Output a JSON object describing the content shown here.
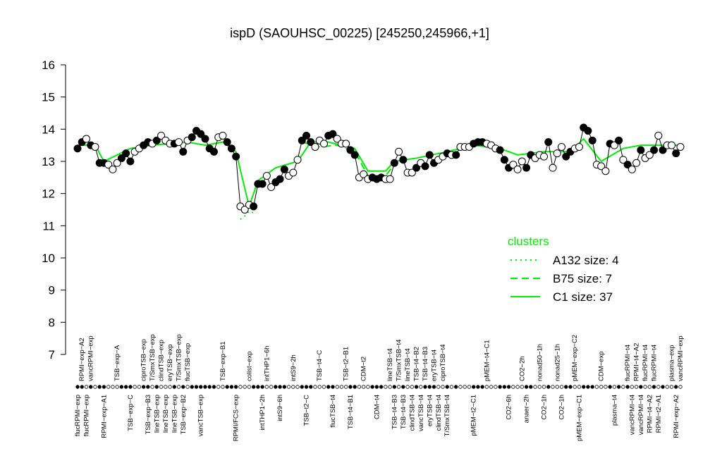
{
  "chart_data": {
    "type": "line",
    "title": "ispD (SAOUHSC_00225) [245250,245966,+1]",
    "ylim": [
      7,
      16
    ],
    "yticks": [
      7,
      8,
      9,
      10,
      11,
      12,
      13,
      14,
      15,
      16
    ],
    "color": "#000000",
    "categories": [
      "flucRPMI−exp",
      "RPMI−exp−A2",
      "flucRPMI−exp",
      "vancRPMI−exp",
      null,
      null,
      "RPMI−exp−A1",
      null,
      null,
      "TSB−exp−A",
      null,
      null,
      "TSB−exp−C",
      null,
      null,
      "ciproTSB−exp",
      "TSB−exp−B3",
      "T/SmxTSB−exp",
      "lineTSB−exp",
      "clindTSB−exp",
      "lineTSB−exp",
      "eryTSB−exp",
      "lineTSB−exp",
      "T/SmxTSB−exp",
      "TSB−exp−B2",
      "flucTSB−exp",
      null,
      null,
      "vancTSB−exp",
      null,
      null,
      null,
      null,
      "TSB−exp−B1",
      null,
      null,
      "RPMI/FCS−exp",
      null,
      null,
      "colist−exp",
      null,
      null,
      "intTHP1−2h",
      "intTHP1−6h",
      null,
      null,
      "intS9−6h",
      null,
      null,
      "intS9−2h",
      null,
      null,
      "TSB−t2−C",
      null,
      null,
      "TSB−t4−C",
      null,
      null,
      "flucTSB−t4",
      null,
      null,
      "TSB−t2−B1",
      "TSB−t4−B1",
      null,
      null,
      "CDM−t2",
      null,
      null,
      "CDM−t4",
      null,
      null,
      "lineTSB−t4",
      "TSB−t4−B3",
      "T/SmxTSB−t4",
      "TSB−t4−B3",
      "lineTSB−t4",
      "clindTSB−t4",
      "TSB−t4−B2",
      "vancTSB−t4",
      "TSB−t4−B3",
      "eryTSB−t4",
      "eryTSB−t4",
      "clindTSB−t4",
      "ciproTSB−t4",
      "T/SmxTSB−t4",
      null,
      null,
      null,
      null,
      null,
      "pMEM−t2−C1",
      null,
      null,
      "pMEM−t4−C1",
      null,
      null,
      null,
      null,
      "CO2−6h",
      null,
      null,
      "CO2−2h",
      "anaer−2h",
      null,
      null,
      "nonad50−1h",
      "CO2−1h",
      null,
      null,
      "nonad25−1h",
      "CO2−1h",
      null,
      null,
      "pMEM−exp−C2",
      "pMEM−exp−C1",
      null,
      null,
      null,
      null,
      "CDM−exp",
      null,
      null,
      "plasma−t4",
      null,
      null,
      "flucRPMI−t4",
      "vancRPMI−t4",
      "RPMI−t4−A2",
      "vancRPMI−t4",
      "flucRPMI−t4",
      "RPMI−t4−A2",
      "flucRPMI−t4",
      "RPMI−t2−A1",
      null,
      null,
      "plasma−exp",
      "RPMI−exp−A2",
      "vancRPMI−exp"
    ],
    "values": [
      13.4,
      13.6,
      13.7,
      13.5,
      13.45,
      12.95,
      12.95,
      12.9,
      12.75,
      12.95,
      13.1,
      13.25,
      13.0,
      13.3,
      13.4,
      13.5,
      13.6,
      13.55,
      13.65,
      13.8,
      13.65,
      13.55,
      13.55,
      13.6,
      13.3,
      13.65,
      13.75,
      13.95,
      13.85,
      13.7,
      13.4,
      13.3,
      13.75,
      13.8,
      13.6,
      13.4,
      13.15,
      11.6,
      11.5,
      11.65,
      11.6,
      12.3,
      12.3,
      12.55,
      12.2,
      12.35,
      12.45,
      12.75,
      12.55,
      12.65,
      13.05,
      13.65,
      13.8,
      13.6,
      13.45,
      13.65,
      13.55,
      13.8,
      13.85,
      13.7,
      13.55,
      13.55,
      13.35,
      13.2,
      12.5,
      12.6,
      12.45,
      12.5,
      12.45,
      12.5,
      12.45,
      12.45,
      12.95,
      13.3,
      13.05,
      12.65,
      12.65,
      12.8,
      12.95,
      12.85,
      13.2,
      12.95,
      13.05,
      13.15,
      13.25,
      13.2,
      13.2,
      13.45,
      13.45,
      13.45,
      13.55,
      13.6,
      13.6,
      13.55,
      13.5,
      13.4,
      13.35,
      13.05,
      12.8,
      12.9,
      12.75,
      13.0,
      12.8,
      13.2,
      13.1,
      13.2,
      13.15,
      13.6,
      12.8,
      13.25,
      13.45,
      13.15,
      13.3,
      13.4,
      13.45,
      14.05,
      13.95,
      13.65,
      12.9,
      12.85,
      12.7,
      13.55,
      13.5,
      13.65,
      13.05,
      12.9,
      12.75,
      12.95,
      13.35,
      13.1,
      13.2,
      13.35,
      13.8,
      13.35,
      13.5,
      13.5,
      13.25,
      13.45
    ],
    "filled": [
      true,
      true,
      false,
      true,
      false,
      true,
      true,
      false,
      false,
      false,
      true,
      true,
      true,
      false,
      false,
      true,
      true,
      false,
      true,
      false,
      false,
      false,
      true,
      false,
      true,
      false,
      true,
      true,
      true,
      true,
      true,
      true,
      false,
      false,
      true,
      true,
      true,
      false,
      false,
      false,
      true,
      true,
      true,
      false,
      false,
      true,
      true,
      true,
      false,
      false,
      false,
      true,
      true,
      true,
      false,
      false,
      false,
      true,
      true,
      false,
      false,
      false,
      true,
      true,
      false,
      false,
      false,
      true,
      true,
      true,
      false,
      false,
      true,
      false,
      true,
      false,
      false,
      true,
      false,
      true,
      true,
      true,
      false,
      false,
      true,
      false,
      true,
      false,
      false,
      false,
      true,
      true,
      true,
      false,
      false,
      false,
      true,
      true,
      true,
      false,
      false,
      false,
      true,
      true,
      false,
      false,
      false,
      true,
      false,
      false,
      false,
      true,
      true,
      false,
      false,
      true,
      true,
      true,
      false,
      false,
      false,
      true,
      false,
      true,
      false,
      true,
      false,
      false,
      true,
      false,
      false,
      true,
      false,
      true,
      false,
      false,
      true,
      false
    ],
    "legend_title": "clusters",
    "series": [
      {
        "name": "A132 size: 4",
        "color": "#00ee00",
        "style": "dotted",
        "x": [
          37,
          38,
          39,
          40
        ],
        "values": [
          11.2,
          11.3,
          11.45,
          11.4
        ]
      },
      {
        "name": "B75 size: 7",
        "color": "#00ee00",
        "style": "dashed",
        "x": [
          51,
          55,
          59,
          63,
          66,
          70,
          72
        ],
        "values": [
          13.6,
          13.45,
          13.5,
          13.3,
          12.55,
          12.55,
          12.9
        ]
      },
      {
        "name": "C1 size: 37",
        "color": "#00ee00",
        "style": "solid",
        "x": [
          0,
          4,
          6,
          12,
          17,
          25,
          29,
          33,
          36,
          39,
          41,
          45,
          50,
          53,
          57,
          63,
          66,
          70,
          72,
          77,
          84,
          90,
          96,
          100,
          106,
          112,
          115,
          119,
          124,
          128,
          134,
          137
        ],
        "values": [
          13.5,
          13.5,
          13.0,
          13.4,
          13.5,
          13.6,
          13.5,
          13.6,
          13.3,
          11.6,
          12.4,
          12.8,
          13.0,
          13.6,
          13.6,
          13.4,
          12.7,
          12.7,
          13.0,
          13.1,
          13.3,
          13.5,
          13.4,
          13.2,
          13.3,
          13.3,
          13.7,
          13.0,
          13.4,
          13.5,
          13.5,
          13.5
        ]
      }
    ]
  }
}
